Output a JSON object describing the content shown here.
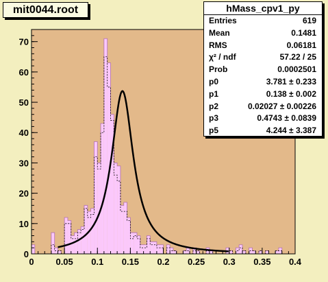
{
  "file_label": "mit0044.root",
  "stats_box": {
    "title": "hMass_cpv1_py",
    "rows": [
      {
        "label": "Entries",
        "value": "619"
      },
      {
        "label": "Mean",
        "value": "0.1481"
      },
      {
        "label": "RMS",
        "value": "0.06181"
      },
      {
        "label": "χ² / ndf",
        "value": "57.22 / 25"
      },
      {
        "label": "Prob",
        "value": "0.0002501"
      },
      {
        "label": "p0",
        "value": "3.781 ± 0.233"
      },
      {
        "label": "p1",
        "value": "0.138 ± 0.002"
      },
      {
        "label": "p2",
        "value": "0.02027 ± 0.00226"
      },
      {
        "label": "p3",
        "value": "0.4743 ± 0.0839"
      },
      {
        "label": "p5",
        "value": "4.244 ± 3.387"
      }
    ]
  },
  "colors": {
    "page_bg": "#f3efbf",
    "frame_bg": "#e3b98a",
    "hist_fill": "#fbc8fb",
    "curve": "#000000"
  },
  "chart_data": {
    "type": "bar",
    "title": "",
    "xlabel": "",
    "ylabel": "",
    "xlim": [
      0,
      0.4
    ],
    "ylim": [
      0,
      74
    ],
    "x_ticks": [
      "0",
      "0.05",
      "0.1",
      "0.15",
      "0.2",
      "0.25",
      "0.3",
      "0.35",
      "0.4"
    ],
    "y_ticks": [
      "0",
      "10",
      "20",
      "30",
      "40",
      "50",
      "60",
      "70"
    ],
    "bin_width": 0.005,
    "bin_start": 0,
    "series": [
      {
        "values": [
          3,
          0,
          0,
          0,
          0,
          0,
          7,
          2,
          1,
          0,
          12,
          11,
          6,
          7,
          8,
          9,
          16,
          14,
          15,
          37,
          30,
          43,
          71,
          63,
          46,
          30,
          29,
          16,
          17,
          12,
          7,
          7,
          6,
          3,
          3,
          6,
          4,
          4,
          3,
          3,
          0,
          3,
          2,
          1,
          0,
          0,
          1,
          2,
          0,
          2,
          1,
          0,
          0,
          2,
          1,
          0,
          0,
          0,
          0,
          2,
          1,
          0,
          2,
          3,
          1,
          0,
          2,
          1,
          0,
          1,
          0,
          1,
          0,
          0,
          1,
          2,
          0,
          0,
          0,
          0
        ]
      },
      {
        "values": [
          0,
          0,
          0,
          0,
          0,
          0,
          3,
          1,
          1,
          0,
          10,
          10,
          5,
          5,
          7,
          8,
          15,
          12,
          13,
          32,
          28,
          40,
          65,
          55,
          44,
          26,
          24,
          14,
          14,
          11,
          5,
          6,
          5,
          2,
          2,
          5,
          3,
          3,
          2,
          2,
          0,
          2,
          1,
          1,
          0,
          0,
          1,
          1,
          0,
          1,
          1,
          0,
          0,
          1,
          1,
          0,
          0,
          0,
          0,
          1,
          1,
          0,
          1,
          2,
          1,
          0,
          1,
          1,
          0,
          1,
          0,
          1,
          0,
          0,
          1,
          1,
          0,
          0,
          0,
          0
        ]
      }
    ],
    "fit_function": {
      "p0": 3.781,
      "p1": 0.138,
      "p2": 0.02027,
      "p3": 0.4743,
      "p5": 4.244
    }
  }
}
